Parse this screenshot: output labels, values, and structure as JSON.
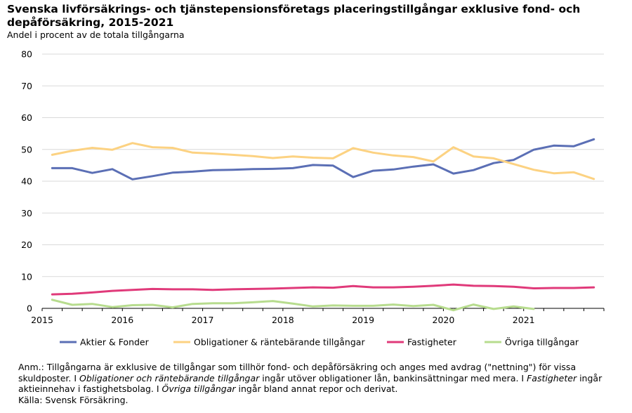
{
  "title": "Svenska livförsäkrings- och tjänstepensionsföretags placeringstillgångar exklusive fond- och depåförsäkring, 2015-2021",
  "subtitle": "Andel i procent av de totala tillgångarna",
  "note": {
    "p1_a": "Anm.: Tillgångarna är exklusive de tillgångar som tillhör fond- och depåförsäkring och anges med avdrag (\"nettning\") för vissa skuldposter. I ",
    "p1_b": "Obligationer och räntebärande tillgångar",
    "p1_c": " ingår utöver obligationer lån, bankinsättningar med mera. I ",
    "p1_d": "Fastigheter",
    "p1_e": " ingår aktieinnehav i fastighetsbolag. I ",
    "p1_f": "Övriga tillgångar",
    "p1_g": " ingår bland annat repor och derivat.",
    "source": "Källa: Svensk Försäkring."
  },
  "chart_data": {
    "type": "line",
    "title": "Svenska livförsäkrings- och tjänstepensionsföretags placeringstillgångar exklusive fond- och depåförsäkring, 2015-2021",
    "ylabel": "Andel i procent av de totala tillgångarna",
    "ylim": [
      0,
      80
    ],
    "yticks": [
      0,
      10,
      20,
      30,
      40,
      50,
      60,
      70,
      80
    ],
    "xticks": [
      "2015",
      "2016",
      "2017",
      "2018",
      "2019",
      "2020",
      "2021"
    ],
    "x": [
      "2015 Q1",
      "2015 Q2",
      "2015 Q3",
      "2015 Q4",
      "2016 Q1",
      "2016 Q2",
      "2016 Q3",
      "2016 Q4",
      "2017 Q1",
      "2017 Q2",
      "2017 Q3",
      "2017 Q4",
      "2018 Q1",
      "2018 Q2",
      "2018 Q3",
      "2018 Q4",
      "2019 Q1",
      "2019 Q2",
      "2019 Q3",
      "2019 Q4",
      "2020 Q1",
      "2020 Q2",
      "2020 Q3",
      "2020 Q4",
      "2021 Q1",
      "2021 Q2",
      "2021 Q3",
      "2021 Q4"
    ],
    "grid": true,
    "legend": "bottom",
    "series": [
      {
        "name": "Aktier & Fonder",
        "color": "#5b6fb5",
        "values": [
          44.1,
          44.1,
          42.6,
          43.8,
          40.6,
          41.6,
          42.7,
          43.0,
          43.5,
          43.6,
          43.8,
          43.9,
          44.1,
          45.1,
          44.9,
          41.3,
          43.3,
          43.7,
          44.6,
          45.3,
          42.4,
          43.5,
          45.7,
          46.7,
          49.9,
          51.2,
          51.0,
          53.2
        ]
      },
      {
        "name": "Obligationer & räntebärande tillgångar",
        "color": "#fcd282",
        "values": [
          48.3,
          49.6,
          50.5,
          49.9,
          52.0,
          50.7,
          50.5,
          49.0,
          48.7,
          48.3,
          47.9,
          47.3,
          47.8,
          47.4,
          47.2,
          50.4,
          49.0,
          48.1,
          47.6,
          46.2,
          50.7,
          47.8,
          47.2,
          45.4,
          43.6,
          42.5,
          42.8,
          40.7
        ]
      },
      {
        "name": "Fastigheter",
        "color": "#e03a7a",
        "values": [
          4.4,
          4.6,
          5.0,
          5.5,
          5.8,
          6.1,
          6.0,
          6.0,
          5.8,
          6.0,
          6.1,
          6.2,
          6.4,
          6.6,
          6.5,
          7.0,
          6.6,
          6.6,
          6.8,
          7.1,
          7.5,
          7.1,
          7.0,
          6.8,
          6.3,
          6.4,
          6.4,
          6.6
        ]
      },
      {
        "name": "Övriga tillgångar",
        "color": "#b7dc8e",
        "values": [
          2.7,
          1.1,
          1.4,
          0.4,
          1.0,
          1.1,
          0.3,
          1.4,
          1.6,
          1.6,
          1.9,
          2.3,
          1.5,
          0.6,
          0.9,
          0.8,
          0.8,
          1.2,
          0.7,
          1.1,
          -0.6,
          1.2,
          -0.2,
          0.6,
          -0.2,
          null,
          null,
          null
        ]
      }
    ]
  }
}
